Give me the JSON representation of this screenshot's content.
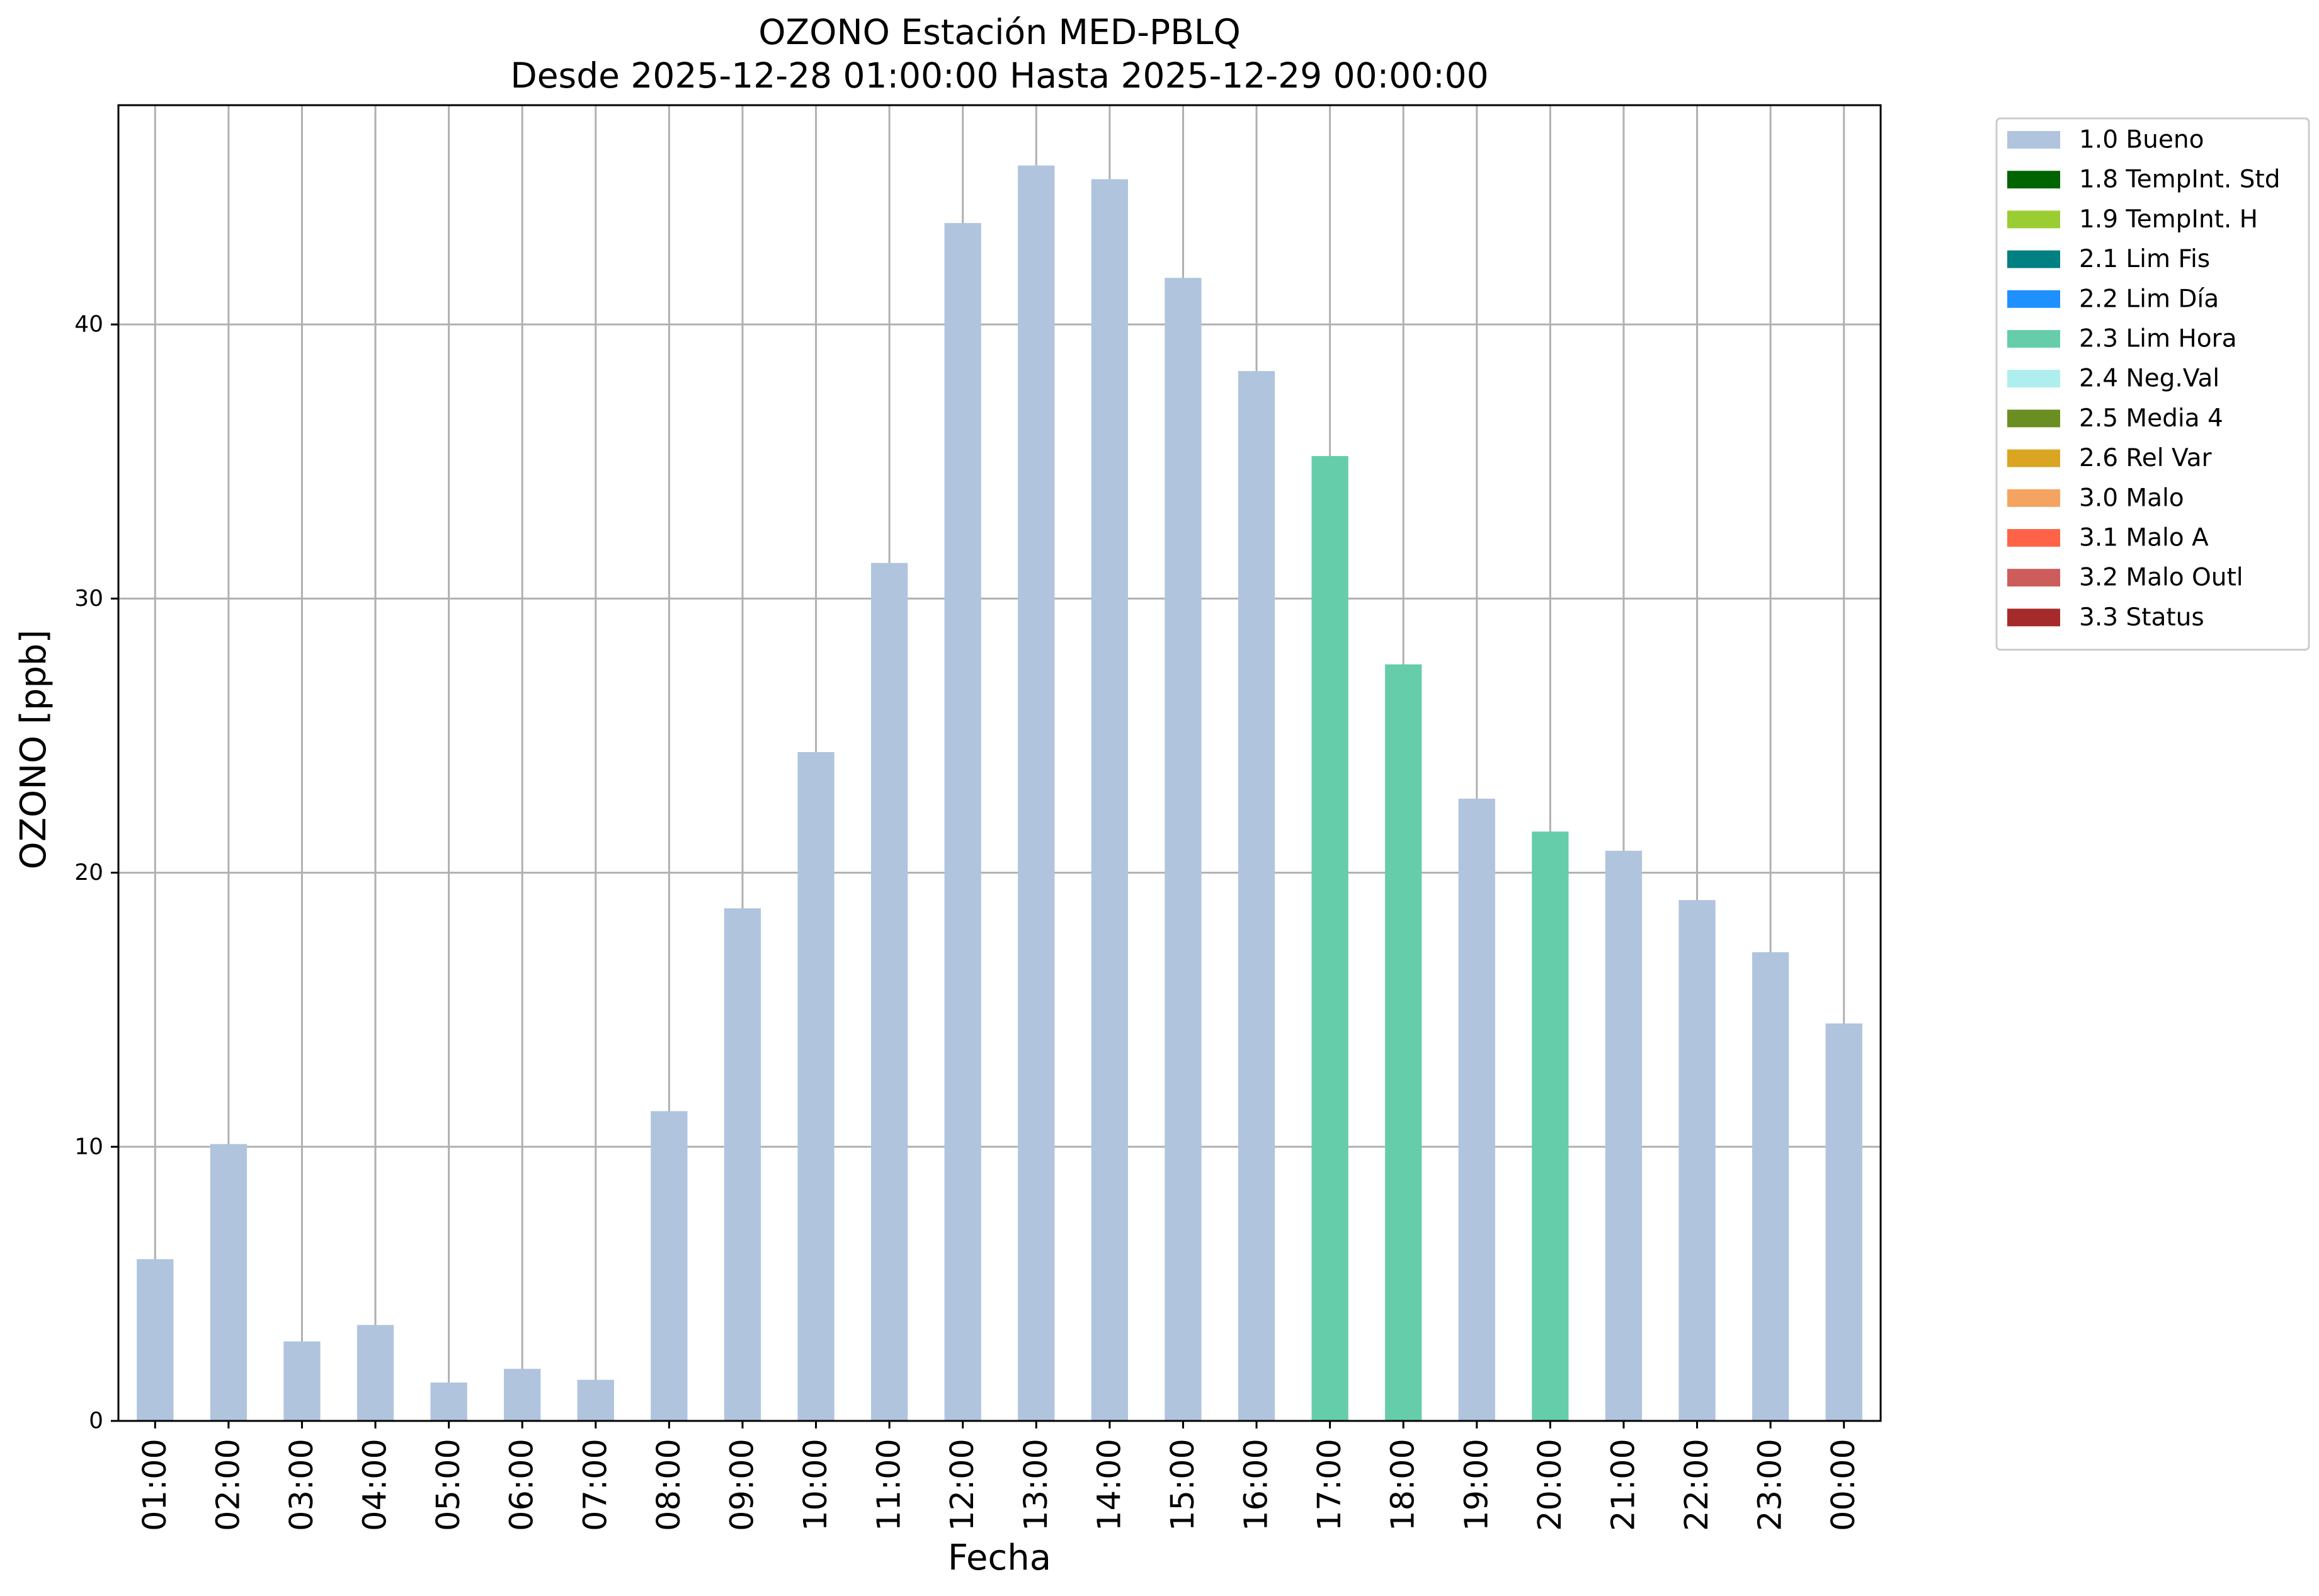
{
  "chart_data": {
    "type": "bar",
    "title": "OZONO Estación MED-PBLQ",
    "subtitle": "Desde 2025-12-28 01:00:00 Hasta 2025-12-29 00:00:00",
    "xlabel": "Fecha",
    "ylabel": "OZONO [ppb]",
    "ylim": [
      0,
      48
    ],
    "yticks": [
      0,
      10,
      20,
      30,
      40
    ],
    "grid": true,
    "legend_position": "outside-top-right",
    "categories": [
      "01:00",
      "02:00",
      "03:00",
      "04:00",
      "05:00",
      "06:00",
      "07:00",
      "08:00",
      "09:00",
      "10:00",
      "11:00",
      "12:00",
      "13:00",
      "14:00",
      "15:00",
      "16:00",
      "17:00",
      "18:00",
      "19:00",
      "20:00",
      "21:00",
      "22:00",
      "23:00",
      "00:00"
    ],
    "values": [
      5.9,
      10.1,
      2.9,
      3.5,
      1.4,
      1.9,
      1.5,
      11.3,
      18.7,
      24.4,
      31.3,
      43.7,
      45.8,
      45.3,
      41.7,
      38.3,
      35.2,
      27.6,
      22.7,
      21.5,
      20.8,
      19.0,
      17.1,
      14.5
    ],
    "flags": [
      "1.0 Bueno",
      "1.0 Bueno",
      "1.0 Bueno",
      "1.0 Bueno",
      "1.0 Bueno",
      "1.0 Bueno",
      "1.0 Bueno",
      "1.0 Bueno",
      "1.0 Bueno",
      "1.0 Bueno",
      "1.0 Bueno",
      "1.0 Bueno",
      "1.0 Bueno",
      "1.0 Bueno",
      "1.0 Bueno",
      "1.0 Bueno",
      "2.3 Lim Hora",
      "2.3 Lim Hora",
      "1.0 Bueno",
      "2.3 Lim Hora",
      "1.0 Bueno",
      "1.0 Bueno",
      "1.0 Bueno",
      "1.0 Bueno"
    ],
    "legend": [
      {
        "label": "1.0 Bueno",
        "color": "#b0c4de"
      },
      {
        "label": "1.8 TempInt. Std",
        "color": "#006400"
      },
      {
        "label": "1.9 TempInt. H",
        "color": "#9acd32"
      },
      {
        "label": "2.1 Lim Fis",
        "color": "#008080"
      },
      {
        "label": "2.2 Lim Día",
        "color": "#1e90ff"
      },
      {
        "label": "2.3 Lim Hora",
        "color": "#66cdaa"
      },
      {
        "label": "2.4 Neg.Val",
        "color": "#afeeee"
      },
      {
        "label": "2.5 Media 4",
        "color": "#6b8e23"
      },
      {
        "label": "2.6 Rel Var",
        "color": "#daa520"
      },
      {
        "label": "3.0 Malo",
        "color": "#f4a460"
      },
      {
        "label": "3.1 Malo A",
        "color": "#ff6347"
      },
      {
        "label": "3.2 Malo Outl",
        "color": "#cd5c5c"
      },
      {
        "label": "3.3 Status",
        "color": "#a52a2a"
      }
    ]
  }
}
